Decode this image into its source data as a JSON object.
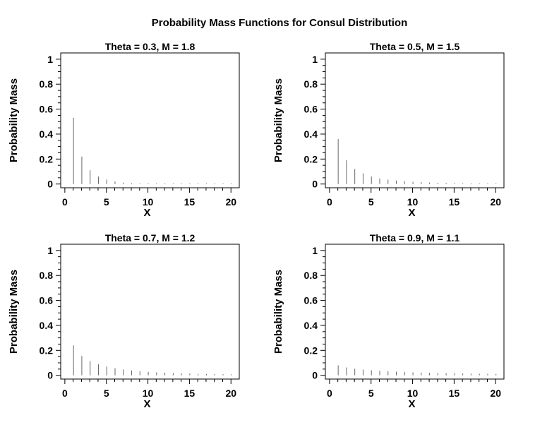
{
  "title": "Probability Mass Functions for Consul Distribution",
  "chart_data": [
    {
      "type": "bar",
      "title": "Theta = 0.3, M = 1.8",
      "xlabel": "X",
      "ylabel": "Probability Mass",
      "xlim": [
        -0.5,
        21
      ],
      "ylim": [
        -0.03,
        1.05
      ],
      "xticks": [
        0,
        5,
        10,
        15,
        20
      ],
      "yticks": [
        0,
        0.2,
        0.4,
        0.6,
        0.8,
        1
      ],
      "ytick_labels": [
        "0",
        "0.2",
        "0.4",
        "0.6",
        "0.8",
        "1"
      ],
      "x": [
        1,
        2,
        3,
        4,
        5,
        6,
        7,
        8,
        9,
        10,
        11,
        12,
        13,
        14,
        15,
        16,
        17,
        18,
        19,
        20
      ],
      "values": [
        0.53,
        0.22,
        0.11,
        0.06,
        0.035,
        0.02,
        0.012,
        0.007,
        0.004,
        0.003,
        0.002,
        0.001,
        0.001,
        0,
        0,
        0,
        0,
        0,
        0,
        0
      ]
    },
    {
      "type": "bar",
      "title": "Theta = 0.5, M = 1.5",
      "xlabel": "X",
      "ylabel": "Probability Mass",
      "xlim": [
        -0.5,
        21
      ],
      "ylim": [
        -0.03,
        1.05
      ],
      "xticks": [
        0,
        5,
        10,
        15,
        20
      ],
      "yticks": [
        0,
        0.2,
        0.4,
        0.6,
        0.8,
        1
      ],
      "ytick_labels": [
        "0",
        "0.2",
        "0.4",
        "0.6",
        "0.8",
        "1"
      ],
      "x": [
        1,
        2,
        3,
        4,
        5,
        6,
        7,
        8,
        9,
        10,
        11,
        12,
        13,
        14,
        15,
        16,
        17,
        18,
        19,
        20
      ],
      "values": [
        0.36,
        0.19,
        0.12,
        0.085,
        0.06,
        0.045,
        0.035,
        0.028,
        0.022,
        0.018,
        0.015,
        0.012,
        0.01,
        0.008,
        0.007,
        0.006,
        0.005,
        0.004,
        0.004,
        0.003
      ]
    },
    {
      "type": "bar",
      "title": "Theta = 0.7, M = 1.2",
      "xlabel": "X",
      "ylabel": "Probability Mass",
      "xlim": [
        -0.5,
        21
      ],
      "ylim": [
        -0.03,
        1.05
      ],
      "xticks": [
        0,
        5,
        10,
        15,
        20
      ],
      "yticks": [
        0,
        0.2,
        0.4,
        0.6,
        0.8,
        1
      ],
      "ytick_labels": [
        "0",
        "0.2",
        "0.4",
        "0.6",
        "0.8",
        "1"
      ],
      "x": [
        1,
        2,
        3,
        4,
        5,
        6,
        7,
        8,
        9,
        10,
        11,
        12,
        13,
        14,
        15,
        16,
        17,
        18,
        19,
        20
      ],
      "values": [
        0.24,
        0.155,
        0.115,
        0.088,
        0.07,
        0.057,
        0.047,
        0.039,
        0.033,
        0.028,
        0.024,
        0.021,
        0.018,
        0.016,
        0.014,
        0.012,
        0.011,
        0.01,
        0.009,
        0.008
      ]
    },
    {
      "type": "bar",
      "title": "Theta = 0.9, M = 1.1",
      "xlabel": "X",
      "ylabel": "Probability Mass",
      "xlim": [
        -0.5,
        21
      ],
      "ylim": [
        -0.03,
        1.05
      ],
      "xticks": [
        0,
        5,
        10,
        15,
        20
      ],
      "yticks": [
        0,
        0.2,
        0.4,
        0.6,
        0.8,
        1
      ],
      "ytick_labels": [
        "0",
        "0.2",
        "0.4",
        "0.6",
        "0.8",
        "1"
      ],
      "x": [
        1,
        2,
        3,
        4,
        5,
        6,
        7,
        8,
        9,
        10,
        11,
        12,
        13,
        14,
        15,
        16,
        17,
        18,
        19,
        20
      ],
      "values": [
        0.08,
        0.063,
        0.053,
        0.046,
        0.04,
        0.036,
        0.032,
        0.029,
        0.026,
        0.024,
        0.022,
        0.02,
        0.018,
        0.017,
        0.016,
        0.015,
        0.014,
        0.013,
        0.012,
        0.011
      ]
    }
  ]
}
